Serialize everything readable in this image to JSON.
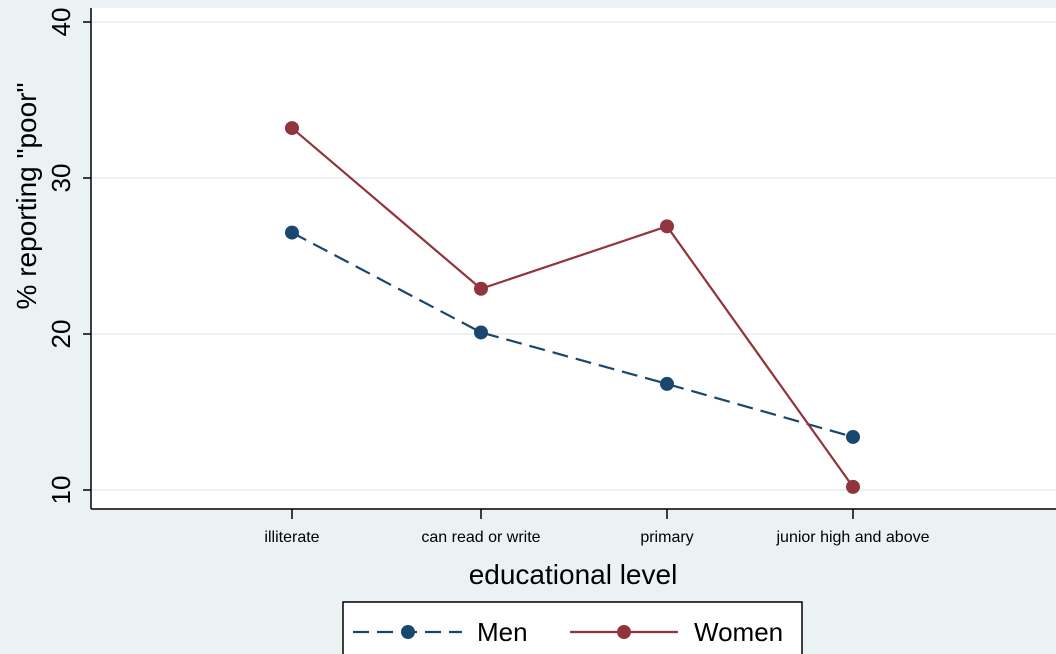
{
  "chart_data": {
    "type": "line",
    "title": "",
    "xlabel": "educational level",
    "ylabel": "% reporting \"poor\"",
    "categories": [
      "illiterate",
      "can read or write",
      "primary",
      "junior high and above"
    ],
    "ylim": [
      10,
      40
    ],
    "yticks": [
      10,
      20,
      30,
      40
    ],
    "grid": true,
    "legend_position": "bottom",
    "series": [
      {
        "name": "Men",
        "values": [
          26.5,
          20.1,
          16.8,
          13.4
        ],
        "color": "#1a476f",
        "dash": "dashed"
      },
      {
        "name": "Women",
        "values": [
          33.2,
          22.9,
          26.9,
          10.2
        ],
        "color": "#90353b",
        "dash": "solid"
      }
    ]
  }
}
